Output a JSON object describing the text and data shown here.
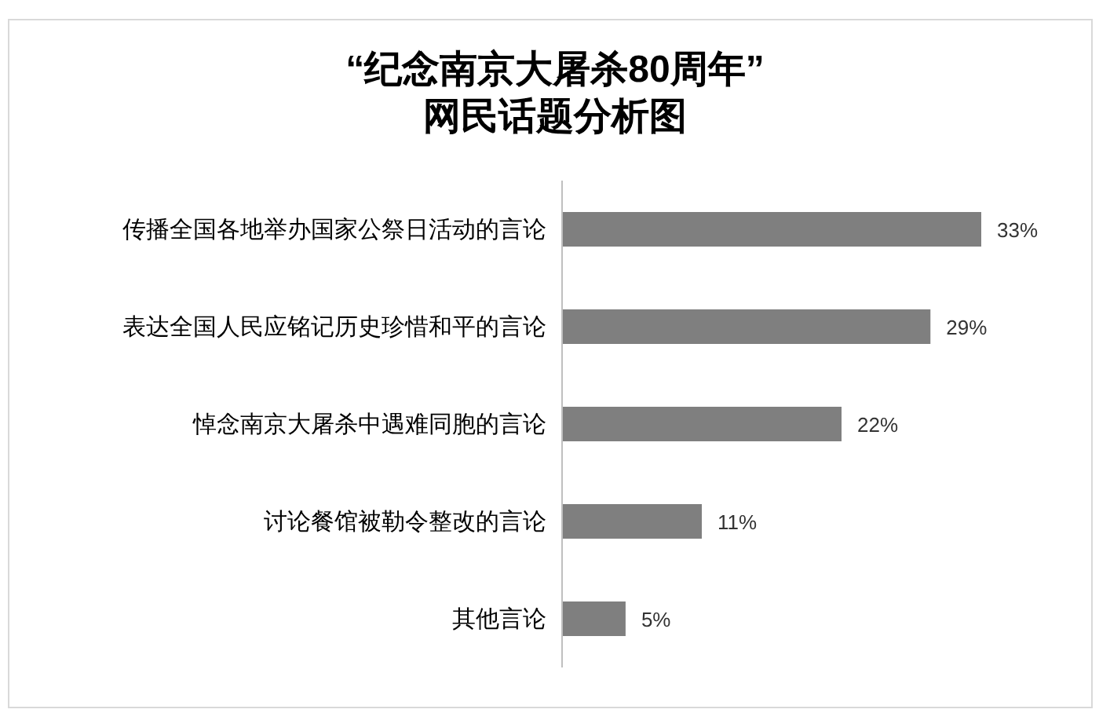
{
  "chart_data": {
    "type": "bar",
    "orientation": "horizontal",
    "title": "“纪念南京大屠杀80周年”\n网民话题分析图",
    "categories": [
      "传播全国各地举办国家公祭日活动的言论",
      "表达全国人民应铭记历史珍惜和平的言论",
      "悼念南京大屠杀中遇难同胞的言论",
      "讨论餐馆被勒令整改的言论",
      "其他言论"
    ],
    "values": [
      33,
      29,
      22,
      11,
      5
    ],
    "value_labels": [
      "33%",
      "29%",
      "22%",
      "11%",
      "5%"
    ],
    "color": "#7f7f7f"
  }
}
